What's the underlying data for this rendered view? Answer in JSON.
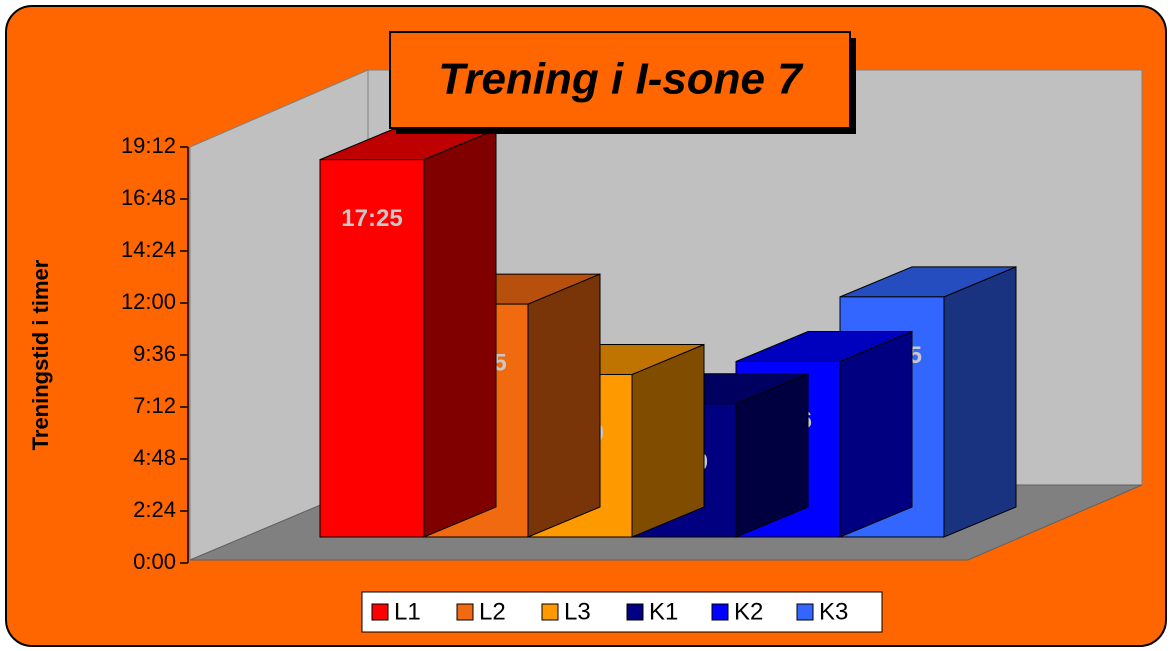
{
  "chart_data": {
    "type": "bar3d",
    "title": "Trening i I-sone 7",
    "y_label": "Treningstid i timer",
    "series": [
      {
        "name": "L1",
        "color": "#ff0000",
        "values": [
          17.4167
        ],
        "value_labels": [
          "17:25"
        ]
      },
      {
        "name": "L2",
        "color": "#f26a10",
        "values": [
          10.75
        ],
        "value_labels": [
          "10:45"
        ]
      },
      {
        "name": "L3",
        "color": "#ff9900",
        "values": [
          7.5
        ],
        "value_labels": [
          "7:30"
        ]
      },
      {
        "name": "K1",
        "color": "#000080",
        "values": [
          6.15
        ],
        "value_labels": [
          "6:09"
        ]
      },
      {
        "name": "K2",
        "color": "#0000ff",
        "values": [
          8.1
        ],
        "value_labels": [
          "8:06"
        ]
      },
      {
        "name": "K3",
        "color": "#3366ff",
        "values": [
          11.0833
        ],
        "value_labels": [
          "11:05"
        ]
      }
    ],
    "ylim": [
      0,
      19.2
    ],
    "yticks": [
      {
        "value": 0,
        "label": "0:00"
      },
      {
        "value": 2.4,
        "label": "2:24"
      },
      {
        "value": 4.8,
        "label": "4:48"
      },
      {
        "value": 7.2,
        "label": "7:12"
      },
      {
        "value": 9.6,
        "label": "9:36"
      },
      {
        "value": 12,
        "label": "12:00"
      },
      {
        "value": 14.4,
        "label": "14:24"
      },
      {
        "value": 16.8,
        "label": "16:48"
      },
      {
        "value": 19.2,
        "label": "19:12"
      }
    ],
    "grid": false,
    "legend": "bottom"
  }
}
